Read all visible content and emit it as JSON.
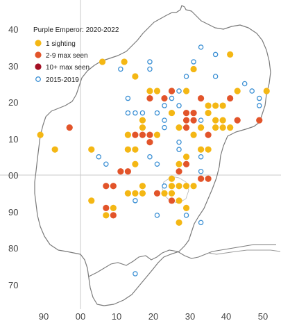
{
  "map": {
    "legend": {
      "title": "Purple Emperor:  2020-2022",
      "items": [
        {
          "label": "1 sighting",
          "style": "filled",
          "color": "#F4B714"
        },
        {
          "label": "2-9 max seen",
          "style": "filled",
          "color": "#E2542A"
        },
        {
          "label": "10+ max seen",
          "style": "filled",
          "color": "#A40F24"
        },
        {
          "label": "2015-2019",
          "style": "open",
          "color": "#3A8FD4"
        }
      ]
    },
    "x_ticks": [
      "90",
      "00",
      "10",
      "20",
      "30",
      "40",
      "50"
    ],
    "y_ticks": [
      "40",
      "30",
      "20",
      "10",
      "00",
      "90",
      "80",
      "70"
    ],
    "colors": {
      "one": "#F4B714",
      "two_nine": "#E2542A",
      "ten_plus": "#A40F24",
      "old": "#3A8FD4",
      "grid": "#c8c8c8",
      "boundary": "#7a7a7a"
    },
    "records": [
      {
        "x": 6,
        "y": 31,
        "cat": "one"
      },
      {
        "x": 12,
        "y": 31,
        "cat": "one"
      },
      {
        "x": 15,
        "y": 27,
        "cat": "one"
      },
      {
        "x": 19,
        "y": 23,
        "cat": "one"
      },
      {
        "x": 21,
        "y": 23,
        "cat": "one"
      },
      {
        "x": 25,
        "y": 23,
        "cat": "one"
      },
      {
        "x": 29,
        "y": 23,
        "cat": "one"
      },
      {
        "x": 31,
        "y": 29,
        "cat": "one"
      },
      {
        "x": 41,
        "y": 33,
        "cat": "one"
      },
      {
        "x": 43,
        "y": 23,
        "cat": "one"
      },
      {
        "x": 51,
        "y": 23,
        "cat": "one"
      },
      {
        "x": 35,
        "y": 19,
        "cat": "one"
      },
      {
        "x": 37,
        "y": 19,
        "cat": "one"
      },
      {
        "x": 39,
        "y": 19,
        "cat": "one"
      },
      {
        "x": 35,
        "y": 17,
        "cat": "one"
      },
      {
        "x": 37,
        "y": 15,
        "cat": "one"
      },
      {
        "x": 39,
        "y": 15,
        "cat": "one"
      },
      {
        "x": 37,
        "y": 13,
        "cat": "one"
      },
      {
        "x": 39,
        "y": 13,
        "cat": "one"
      },
      {
        "x": 41,
        "y": 13,
        "cat": "one"
      },
      {
        "x": 33,
        "y": 13,
        "cat": "one"
      },
      {
        "x": 25,
        "y": 17,
        "cat": "one"
      },
      {
        "x": 17,
        "y": 15,
        "cat": "one"
      },
      {
        "x": 17,
        "y": 13,
        "cat": "one"
      },
      {
        "x": 13,
        "y": 11,
        "cat": "one"
      },
      {
        "x": 21,
        "y": 11,
        "cat": "one"
      },
      {
        "x": 27,
        "y": 13,
        "cat": "one"
      },
      {
        "x": 31,
        "y": 11,
        "cat": "one"
      },
      {
        "x": 33,
        "y": 7,
        "cat": "one"
      },
      {
        "x": 35,
        "y": 7,
        "cat": "one"
      },
      {
        "x": 13,
        "y": 7,
        "cat": "one"
      },
      {
        "x": 15,
        "y": 7,
        "cat": "one"
      },
      {
        "x": 29,
        "y": 5,
        "cat": "one"
      },
      {
        "x": 15,
        "y": 3,
        "cat": "one"
      },
      {
        "x": 27,
        "y": 3,
        "cat": "one"
      },
      {
        "x": 25,
        "y": -1,
        "cat": "one"
      },
      {
        "x": 25,
        "y": -3,
        "cat": "one"
      },
      {
        "x": 27,
        "y": -3,
        "cat": "one"
      },
      {
        "x": 29,
        "y": -3,
        "cat": "one"
      },
      {
        "x": 31,
        "y": -3,
        "cat": "one"
      },
      {
        "x": 17,
        "y": -3,
        "cat": "one"
      },
      {
        "x": 13,
        "y": -5,
        "cat": "one"
      },
      {
        "x": 15,
        "y": -5,
        "cat": "one"
      },
      {
        "x": 17,
        "y": -5,
        "cat": "one"
      },
      {
        "x": 23,
        "y": -5,
        "cat": "one"
      },
      {
        "x": 25,
        "y": -5,
        "cat": "one"
      },
      {
        "x": 27,
        "y": -7,
        "cat": "one"
      },
      {
        "x": 29,
        "y": -9,
        "cat": "one"
      },
      {
        "x": 27,
        "y": -13,
        "cat": "one"
      },
      {
        "x": 3,
        "y": -7,
        "cat": "one"
      },
      {
        "x": 9,
        "y": -9,
        "cat": "one"
      },
      {
        "x": 7,
        "y": -11,
        "cat": "one"
      },
      {
        "x": -11,
        "y": 11,
        "cat": "one"
      },
      {
        "x": -7,
        "y": 7,
        "cat": "one"
      },
      {
        "x": 3,
        "y": 7,
        "cat": "one"
      },
      {
        "x": 23,
        "y": 21,
        "cat": "two_nine"
      },
      {
        "x": 25,
        "y": 23,
        "cat": "two_nine"
      },
      {
        "x": 33,
        "y": 21,
        "cat": "two_nine"
      },
      {
        "x": 41,
        "y": 21,
        "cat": "two_nine"
      },
      {
        "x": 19,
        "y": 21,
        "cat": "two_nine"
      },
      {
        "x": 29,
        "y": 17,
        "cat": "two_nine"
      },
      {
        "x": 31,
        "y": 17,
        "cat": "two_nine"
      },
      {
        "x": 29,
        "y": 15,
        "cat": "two_nine"
      },
      {
        "x": 31,
        "y": 15,
        "cat": "two_nine"
      },
      {
        "x": 29,
        "y": 13,
        "cat": "two_nine"
      },
      {
        "x": 43,
        "y": 15,
        "cat": "two_nine"
      },
      {
        "x": 49,
        "y": 15,
        "cat": "two_nine"
      },
      {
        "x": 15,
        "y": 11,
        "cat": "two_nine"
      },
      {
        "x": 17,
        "y": 11,
        "cat": "two_nine"
      },
      {
        "x": 19,
        "y": 11,
        "cat": "two_nine"
      },
      {
        "x": 19,
        "y": 9,
        "cat": "two_nine"
      },
      {
        "x": 35,
        "y": 11,
        "cat": "two_nine"
      },
      {
        "x": 29,
        "y": 3,
        "cat": "two_nine"
      },
      {
        "x": 11,
        "y": 1,
        "cat": "two_nine"
      },
      {
        "x": 13,
        "y": 1,
        "cat": "two_nine"
      },
      {
        "x": 27,
        "y": 1,
        "cat": "two_nine"
      },
      {
        "x": 33,
        "y": -1,
        "cat": "two_nine"
      },
      {
        "x": 35,
        "y": -1,
        "cat": "two_nine"
      },
      {
        "x": 7,
        "y": -3,
        "cat": "two_nine"
      },
      {
        "x": 9,
        "y": -3,
        "cat": "two_nine"
      },
      {
        "x": 21,
        "y": -5,
        "cat": "two_nine"
      },
      {
        "x": 25,
        "y": -7,
        "cat": "two_nine"
      },
      {
        "x": 7,
        "y": -9,
        "cat": "two_nine"
      },
      {
        "x": 9,
        "y": -11,
        "cat": "two_nine"
      },
      {
        "x": -3,
        "y": 13,
        "cat": "two_nine"
      },
      {
        "x": 11,
        "y": 29,
        "cat": "old"
      },
      {
        "x": 19,
        "y": 31,
        "cat": "old"
      },
      {
        "x": 19,
        "y": 29,
        "cat": "old"
      },
      {
        "x": 33,
        "y": 35,
        "cat": "old"
      },
      {
        "x": 31,
        "y": 31,
        "cat": "old"
      },
      {
        "x": 37,
        "y": 33,
        "cat": "old"
      },
      {
        "x": 29,
        "y": 27,
        "cat": "old"
      },
      {
        "x": 37,
        "y": 27,
        "cat": "old"
      },
      {
        "x": 45,
        "y": 25,
        "cat": "old"
      },
      {
        "x": 47,
        "y": 23,
        "cat": "old"
      },
      {
        "x": 49,
        "y": 21,
        "cat": "old"
      },
      {
        "x": 49,
        "y": 19,
        "cat": "old"
      },
      {
        "x": 27,
        "y": 23,
        "cat": "old"
      },
      {
        "x": 23,
        "y": 19,
        "cat": "old"
      },
      {
        "x": 27,
        "y": 19,
        "cat": "old"
      },
      {
        "x": 13,
        "y": 21,
        "cat": "old"
      },
      {
        "x": 25,
        "y": 21,
        "cat": "old"
      },
      {
        "x": 13,
        "y": 17,
        "cat": "old"
      },
      {
        "x": 15,
        "y": 17,
        "cat": "old"
      },
      {
        "x": 17,
        "y": 17,
        "cat": "old"
      },
      {
        "x": 21,
        "y": 17,
        "cat": "old"
      },
      {
        "x": 33,
        "y": 15,
        "cat": "old"
      },
      {
        "x": 23,
        "y": 15,
        "cat": "old"
      },
      {
        "x": 23,
        "y": 13,
        "cat": "old"
      },
      {
        "x": 27,
        "y": 9,
        "cat": "old"
      },
      {
        "x": 27,
        "y": 7,
        "cat": "old"
      },
      {
        "x": 5,
        "y": 5,
        "cat": "old"
      },
      {
        "x": 7,
        "y": 3,
        "cat": "old"
      },
      {
        "x": 19,
        "y": 5,
        "cat": "old"
      },
      {
        "x": 33,
        "y": 5,
        "cat": "old"
      },
      {
        "x": 21,
        "y": 3,
        "cat": "old"
      },
      {
        "x": 33,
        "y": 1,
        "cat": "old"
      },
      {
        "x": 23,
        "y": -3,
        "cat": "old"
      },
      {
        "x": 25,
        "y": -3,
        "cat": "old"
      },
      {
        "x": 15,
        "y": -7,
        "cat": "old"
      },
      {
        "x": 7,
        "y": -9,
        "cat": "old"
      },
      {
        "x": 21,
        "y": -11,
        "cat": "old"
      },
      {
        "x": 29,
        "y": -11,
        "cat": "old"
      },
      {
        "x": 33,
        "y": -13,
        "cat": "old"
      },
      {
        "x": 15,
        "y": -27,
        "cat": "old"
      }
    ]
  }
}
